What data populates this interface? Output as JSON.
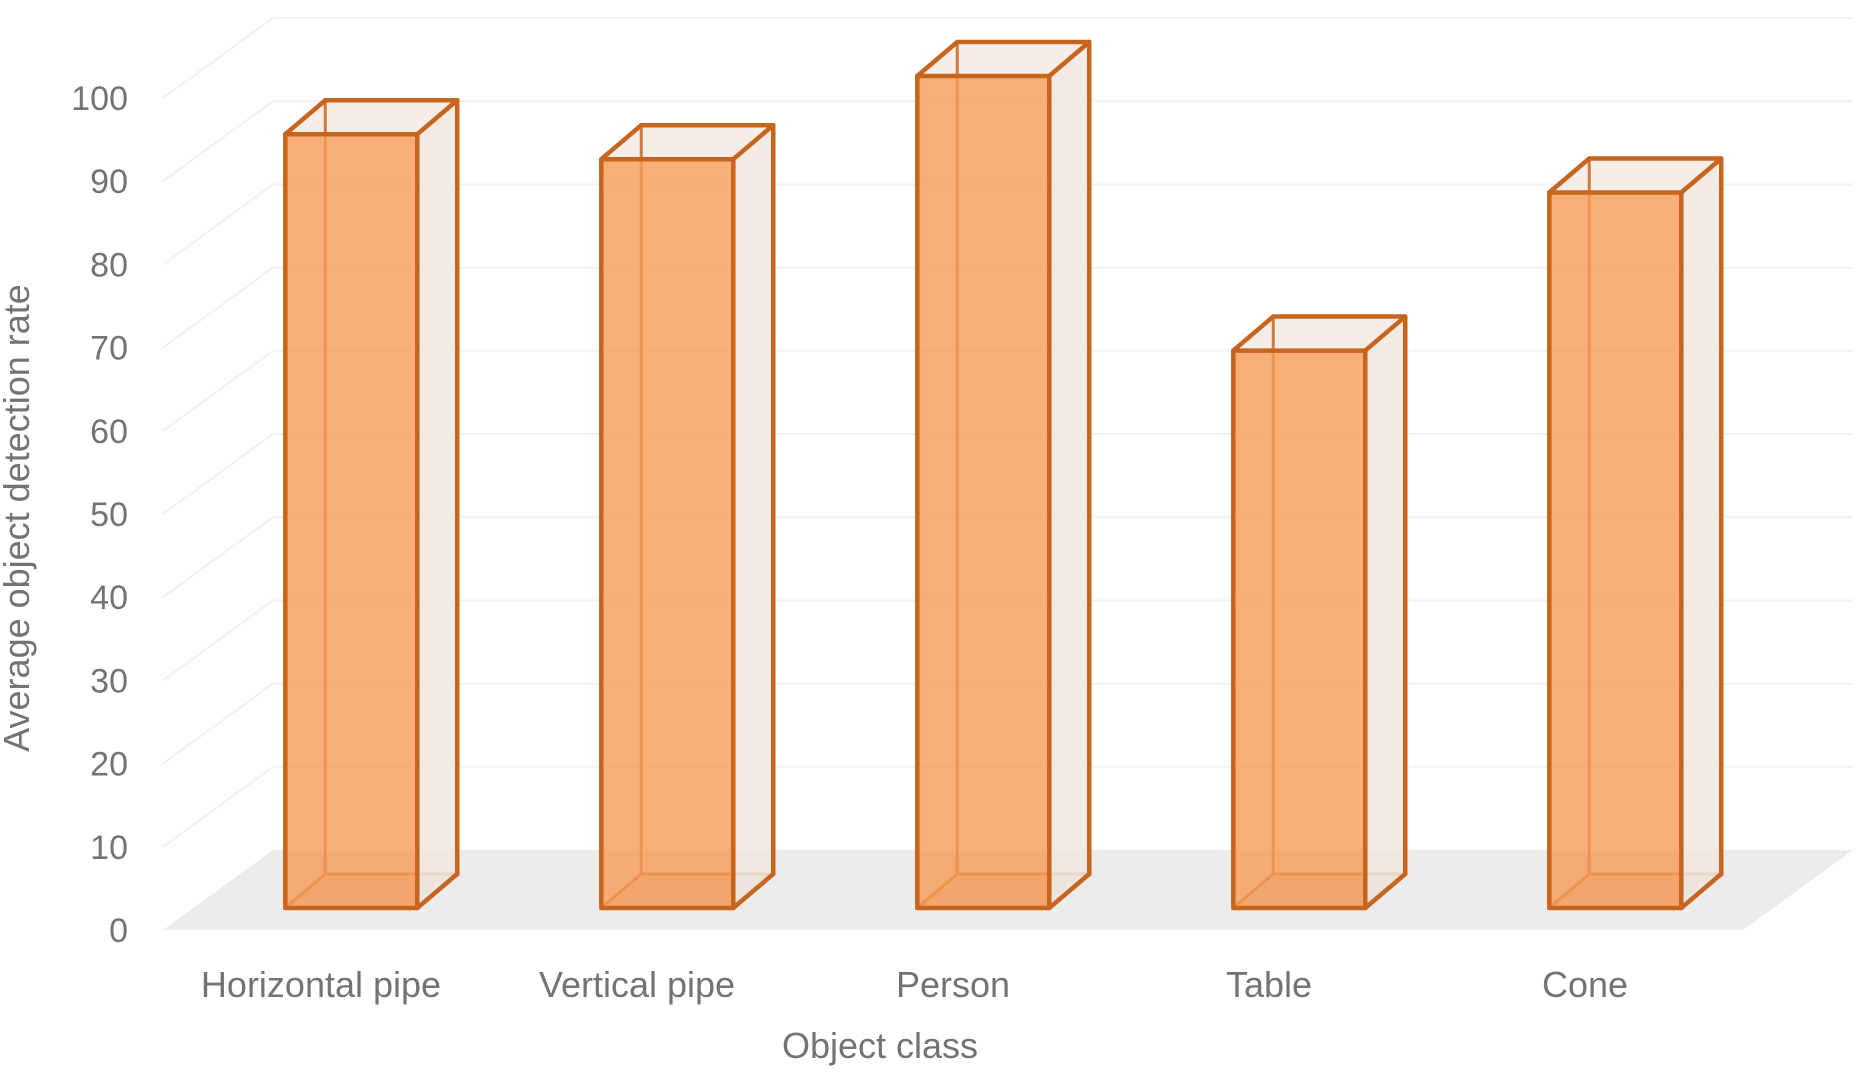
{
  "chart_data": {
    "type": "bar",
    "style_3d": "excel-3d-column-transparent",
    "title": "",
    "xlabel": "Object class",
    "ylabel": "Average object detection rate",
    "categories": [
      "Horizontal pipe",
      "Vertical pipe",
      "Person",
      "Table",
      "Cone"
    ],
    "values": [
      93,
      90,
      100,
      67,
      86
    ],
    "ylim": [
      0,
      100
    ],
    "ytick_step": 10,
    "yticks": [
      0,
      10,
      20,
      30,
      40,
      50,
      60,
      70,
      80,
      90,
      100
    ],
    "grid": true,
    "legend": false,
    "colors": {
      "bar_fill": "#F59A55",
      "bar_edge": "#C7651F",
      "bar_side_face": "#EFE6E0",
      "bar_top_face": "#F4ECE5",
      "bar_bottom_face": "#DCC4B4",
      "floor": "#ECECEC",
      "gridline": "#F1F1F1",
      "axis_text": "#737373",
      "background": "#FFFFFF"
    }
  }
}
